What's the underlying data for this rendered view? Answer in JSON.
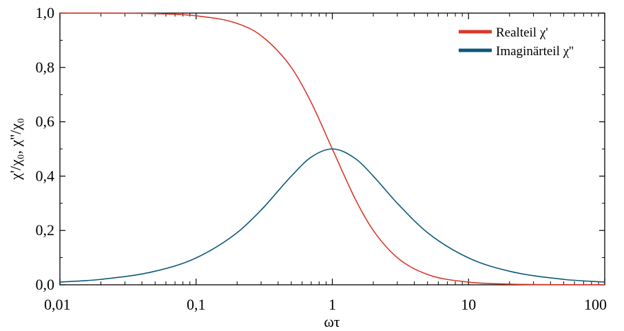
{
  "chart_data": {
    "type": "line",
    "title": "",
    "xlabel": "ωτ",
    "ylabel": "χ'/χ₀, χ''/χ₀",
    "x_scale": "log",
    "xlim": [
      0.01,
      100
    ],
    "ylim": [
      0.0,
      1.0
    ],
    "x_ticks": [
      0.01,
      0.1,
      1,
      10,
      100
    ],
    "x_tick_labels": [
      "0,01",
      "0,1",
      "1",
      "10",
      "100"
    ],
    "y_ticks": [
      0.0,
      0.2,
      0.4,
      0.6,
      0.8,
      1.0
    ],
    "y_tick_labels": [
      "0,0",
      "0,2",
      "0,4",
      "0,6",
      "0,8",
      "1,0"
    ],
    "grid": false,
    "legend_position": "top-right",
    "x": [
      0.01,
      0.02,
      0.05,
      0.1,
      0.2,
      0.3,
      0.5,
      0.7,
      1,
      1.5,
      2,
      3,
      5,
      10,
      20,
      50,
      100
    ],
    "series": [
      {
        "name": "Realteil χ'",
        "color": "#d9392b",
        "values": [
          1.0,
          1.0,
          0.998,
          0.99,
          0.962,
          0.917,
          0.8,
          0.671,
          0.5,
          0.308,
          0.2,
          0.1,
          0.038,
          0.0099,
          0.0025,
          0.0004,
          0.0001
        ]
      },
      {
        "name": "Imaginärteil χ''",
        "color": "#0c587a",
        "values": [
          0.01,
          0.02,
          0.05,
          0.099,
          0.192,
          0.275,
          0.4,
          0.47,
          0.5,
          0.462,
          0.4,
          0.3,
          0.192,
          0.099,
          0.05,
          0.02,
          0.01
        ]
      }
    ]
  }
}
